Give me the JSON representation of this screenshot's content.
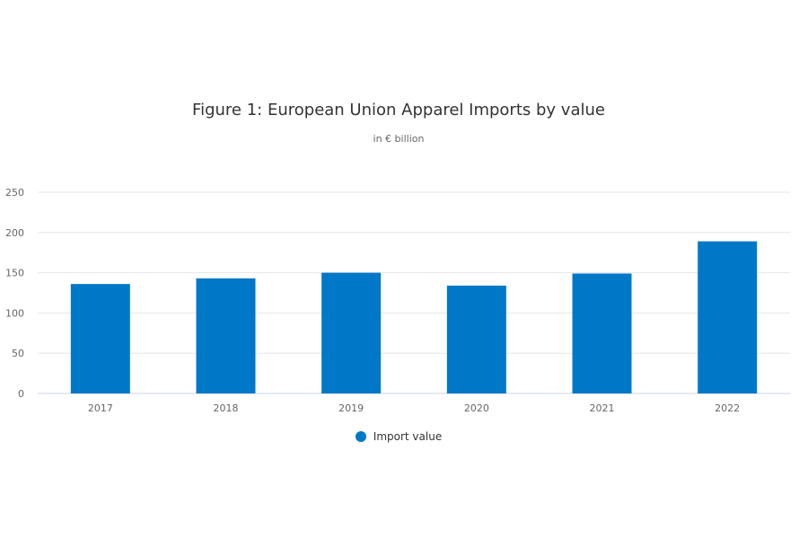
{
  "chart_data": {
    "type": "bar",
    "title": "Figure 1: European Union Apparel Imports by value",
    "subtitle": "in € billion",
    "categories": [
      "2017",
      "2018",
      "2019",
      "2020",
      "2021",
      "2022"
    ],
    "series": [
      {
        "name": "Import value",
        "values": [
          136,
          143,
          150,
          134,
          149,
          189
        ],
        "color": "#0078c8"
      }
    ],
    "ylim": [
      0,
      250
    ],
    "yticks": [
      0,
      50,
      100,
      150,
      200,
      250
    ],
    "grid": true,
    "legend_position": "bottom-center"
  }
}
